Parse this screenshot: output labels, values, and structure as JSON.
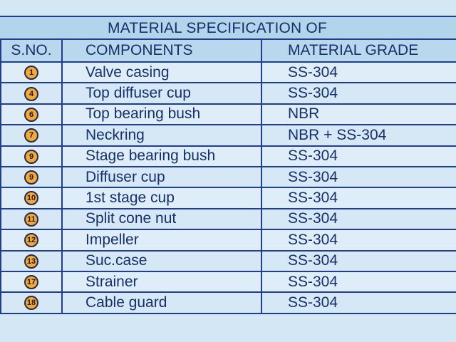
{
  "table": {
    "title": "MATERIAL SPECIFICATION OF",
    "headers": {
      "sno": "S.NO.",
      "component": "COMPONENTS",
      "grade": "MATERIAL GRADE"
    },
    "rows": [
      {
        "num": "1",
        "component": "Valve casing",
        "grade": "SS-304"
      },
      {
        "num": "4",
        "component": "Top diffuser cup",
        "grade": "SS-304"
      },
      {
        "num": "6",
        "component": "Top bearing bush",
        "grade": "NBR"
      },
      {
        "num": "7",
        "component": "Neckring",
        "grade": "NBR + SS-304"
      },
      {
        "num": "9",
        "component": "Stage bearing bush",
        "grade": "SS-304"
      },
      {
        "num": "9",
        "component": "Diffuser cup",
        "grade": "SS-304"
      },
      {
        "num": "10",
        "component": "1st stage cup",
        "grade": "SS-304"
      },
      {
        "num": "11",
        "component": "Split cone nut",
        "grade": "SS-304"
      },
      {
        "num": "12",
        "component": "Impeller",
        "grade": "SS-304"
      },
      {
        "num": "13",
        "component": "Suc.case",
        "grade": "SS-304"
      },
      {
        "num": "17",
        "component": "Strainer",
        "grade": "SS-304"
      },
      {
        "num": "18",
        "component": "Cable guard",
        "grade": "SS-304"
      }
    ]
  },
  "colors": {
    "background": "#d3e7f4",
    "border": "#1f3f8a",
    "text": "#15306a",
    "badge": "#f2a93b"
  }
}
